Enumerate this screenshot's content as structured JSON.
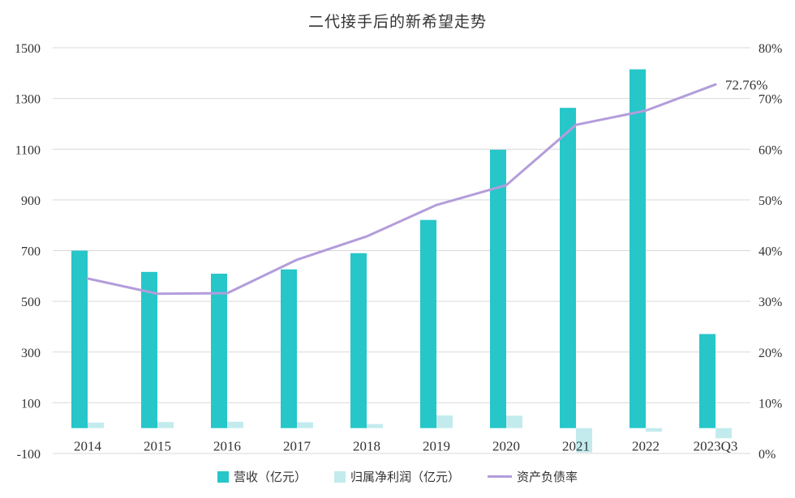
{
  "chart_data": {
    "type": "bar",
    "title": "二代接手后的新希望走势",
    "categories": [
      "2014",
      "2015",
      "2016",
      "2017",
      "2018",
      "2019",
      "2020",
      "2021",
      "2022",
      "2023Q3"
    ],
    "series": [
      {
        "name": "营收（亿元）",
        "kind": "bar",
        "axis": "left",
        "values": [
          700,
          616,
          609,
          626,
          690,
          821,
          1098,
          1263,
          1415,
          371
        ],
        "color": "#26C6C9"
      },
      {
        "name": "归属净利润（亿元）",
        "kind": "bar",
        "axis": "left",
        "values": [
          22,
          24,
          25,
          23,
          16,
          50,
          49,
          -96,
          -14,
          -40
        ],
        "color": "#C3EBEE"
      },
      {
        "name": "资产负债率",
        "kind": "line",
        "axis": "right",
        "values": [
          34.5,
          31.5,
          31.6,
          38.2,
          42.8,
          49.0,
          52.9,
          64.8,
          67.6,
          72.76
        ],
        "color": "#B39DDB"
      }
    ],
    "annotation": {
      "category": "2023Q3",
      "series": "资产负债率",
      "text": "72.76%"
    },
    "y_left": {
      "ylim": [
        -100,
        1500
      ],
      "ticks": [
        "-100",
        "100",
        "300",
        "500",
        "700",
        "900",
        "1100",
        "1300",
        "1500"
      ]
    },
    "y_right": {
      "ylim": [
        0,
        80
      ],
      "ticks": [
        "0%",
        "10%",
        "20%",
        "30%",
        "40%",
        "50%",
        "60%",
        "70%",
        "80%"
      ]
    },
    "grid": true,
    "legend_position": "bottom"
  }
}
